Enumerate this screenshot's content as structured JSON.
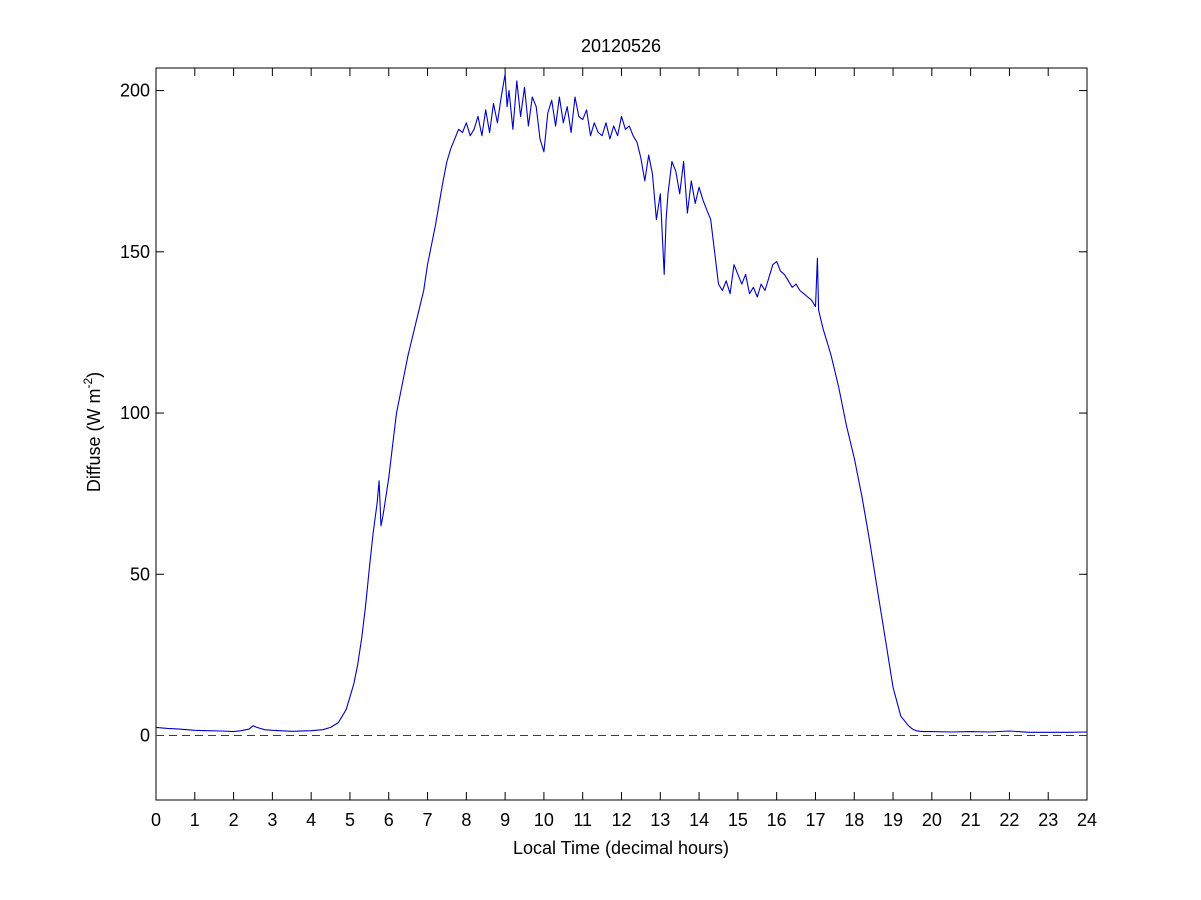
{
  "chart_data": {
    "type": "line",
    "title": "20120526",
    "xlabel": "Local Time (decimal hours)",
    "ylabel_main": "Diffuse (W m",
    "ylabel_sup": "-2",
    "ylabel_tail": ")",
    "xlim": [
      0,
      24
    ],
    "ylim": [
      -20,
      207
    ],
    "xticks": [
      0,
      1,
      2,
      3,
      4,
      5,
      6,
      7,
      8,
      9,
      10,
      11,
      12,
      13,
      14,
      15,
      16,
      17,
      18,
      19,
      20,
      21,
      22,
      23,
      24
    ],
    "yticks": [
      0,
      50,
      100,
      150,
      200
    ],
    "grid": false,
    "line_color": "#0000cc",
    "reference_line": {
      "y": 0,
      "color": "#cc0000",
      "style": "dashed"
    },
    "series": [
      {
        "x": [
          0,
          0.3,
          0.6,
          1,
          1.3,
          1.7,
          2,
          2.2,
          2.4,
          2.5,
          2.6,
          2.8,
          3,
          3.5,
          4,
          4.3,
          4.5,
          4.7,
          4.8,
          4.9,
          5,
          5.1,
          5.2,
          5.3,
          5.4,
          5.5,
          5.6,
          5.7,
          5.75,
          5.8,
          5.85,
          5.9,
          6,
          6.1,
          6.2,
          6.3,
          6.5,
          6.7,
          6.9,
          7,
          7.1,
          7.2,
          7.3,
          7.4,
          7.5,
          7.6,
          7.7,
          7.8,
          7.9,
          8,
          8.1,
          8.2,
          8.3,
          8.4,
          8.5,
          8.6,
          8.7,
          8.8,
          8.9,
          9,
          9.05,
          9.1,
          9.2,
          9.3,
          9.4,
          9.5,
          9.6,
          9.7,
          9.8,
          9.9,
          10,
          10.1,
          10.2,
          10.3,
          10.4,
          10.5,
          10.6,
          10.7,
          10.8,
          10.9,
          11,
          11.1,
          11.2,
          11.3,
          11.4,
          11.5,
          11.6,
          11.7,
          11.8,
          11.9,
          12,
          12.1,
          12.2,
          12.3,
          12.4,
          12.5,
          12.6,
          12.7,
          12.8,
          12.9,
          13,
          13.1,
          13.15,
          13.2,
          13.3,
          13.4,
          13.5,
          13.6,
          13.7,
          13.8,
          13.9,
          14,
          14.1,
          14.2,
          14.3,
          14.4,
          14.5,
          14.6,
          14.7,
          14.8,
          14.9,
          15,
          15.1,
          15.2,
          15.3,
          15.4,
          15.5,
          15.6,
          15.7,
          15.8,
          15.9,
          16,
          16.1,
          16.2,
          16.3,
          16.4,
          16.5,
          16.6,
          16.7,
          16.8,
          16.9,
          17,
          17.05,
          17.08,
          17.1,
          17.2,
          17.4,
          17.6,
          17.8,
          18,
          18.2,
          18.4,
          18.6,
          18.8,
          19,
          19.2,
          19.4,
          19.5,
          19.6,
          19.7,
          19.8,
          20,
          20.5,
          21,
          21.5,
          22,
          22.5,
          23,
          23.5,
          24
        ],
        "y": [
          2.5,
          2.2,
          2,
          1.6,
          1.5,
          1.4,
          1.2,
          1.5,
          2,
          3,
          2.5,
          1.8,
          1.6,
          1.3,
          1.5,
          1.8,
          2.5,
          4,
          6,
          8,
          12,
          16,
          22,
          30,
          40,
          52,
          63,
          72,
          79,
          65,
          68,
          72,
          80,
          90,
          100,
          106,
          118,
          128,
          138,
          146,
          152,
          158,
          165,
          172,
          178,
          182,
          185,
          188,
          187,
          190,
          186,
          188,
          192,
          186,
          194,
          187,
          196,
          190,
          198,
          205,
          195,
          200,
          188,
          203,
          192,
          201,
          189,
          198,
          195,
          185,
          181,
          193,
          197,
          189,
          198,
          190,
          195,
          187,
          198,
          192,
          191,
          194,
          186,
          190,
          187,
          186,
          190,
          185,
          189,
          186,
          192,
          188,
          189,
          186,
          184,
          179,
          172,
          180,
          174,
          160,
          168,
          143,
          160,
          168,
          178,
          175,
          168,
          178,
          162,
          172,
          165,
          170,
          166,
          163,
          160,
          150,
          140,
          138,
          141,
          137,
          146,
          143,
          140,
          143,
          137,
          139,
          136,
          140,
          138,
          142,
          146,
          147,
          144,
          143,
          141,
          139,
          140,
          138,
          137,
          136,
          135,
          133,
          148,
          132,
          131,
          126,
          118,
          108,
          96,
          86,
          74,
          60,
          45,
          30,
          15,
          6,
          3,
          2,
          1.5,
          1.3,
          1.2,
          1.2,
          1.1,
          1.2,
          1.1,
          1.4,
          1.0,
          1.0,
          1.0,
          1.1
        ]
      }
    ]
  }
}
